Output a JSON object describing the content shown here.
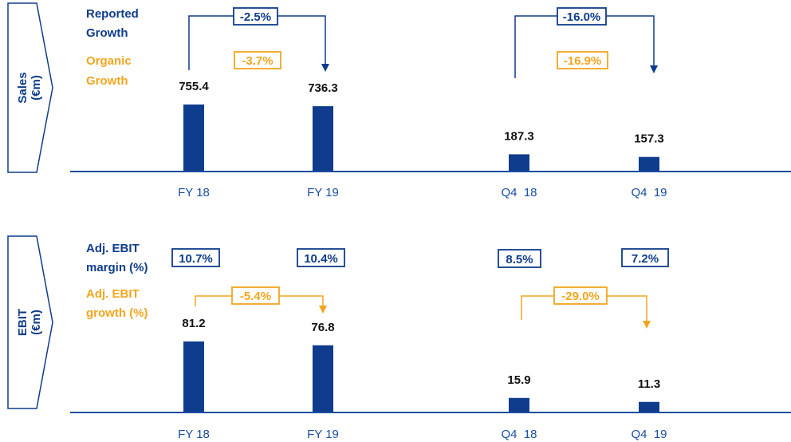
{
  "colors": {
    "blue": "#0f3c8c",
    "orange": "#f2a51f",
    "axis": "#1f4da0",
    "tick": "#1a4ea3"
  },
  "sections": {
    "sales": {
      "title_line1": "Sales",
      "title_line2": "(€m)",
      "legend_reported_1": "Reported",
      "legend_reported_2": "Growth",
      "legend_organic_1": "Organic",
      "legend_organic_2": "Growth",
      "fy_reported_growth": "-2.5%",
      "fy_organic_growth": "-3.7%",
      "q4_reported_growth": "-16.0%",
      "q4_organic_growth": "-16.9%"
    },
    "ebit": {
      "title_line1": "EBIT",
      "title_line2": "(€m)",
      "legend_margin_1": "Adj. EBIT",
      "legend_margin_2": "margin (%)",
      "legend_growth_1": "Adj. EBIT",
      "legend_growth_2": "growth (%)",
      "margins": [
        "10.7%",
        "10.4%",
        "8.5%",
        "7.2%"
      ],
      "fy_growth": "-5.4%",
      "q4_growth": "-29.0%"
    }
  },
  "chart_data": [
    {
      "type": "bar",
      "title": "Sales (€m)",
      "categories": [
        "FY 18",
        "FY 19",
        "Q4  18",
        "Q4  19"
      ],
      "values": [
        755.4,
        736.3,
        187.3,
        157.3
      ],
      "value_labels": [
        "755.4",
        "736.3",
        "187.3",
        "157.3"
      ]
    },
    {
      "type": "bar",
      "title": "EBIT (€m)",
      "categories": [
        "FY 18",
        "FY 19",
        "Q4  18",
        "Q4  19"
      ],
      "values": [
        81.2,
        76.8,
        15.9,
        11.3
      ],
      "value_labels": [
        "81.2",
        "76.8",
        "15.9",
        "11.3"
      ]
    }
  ]
}
